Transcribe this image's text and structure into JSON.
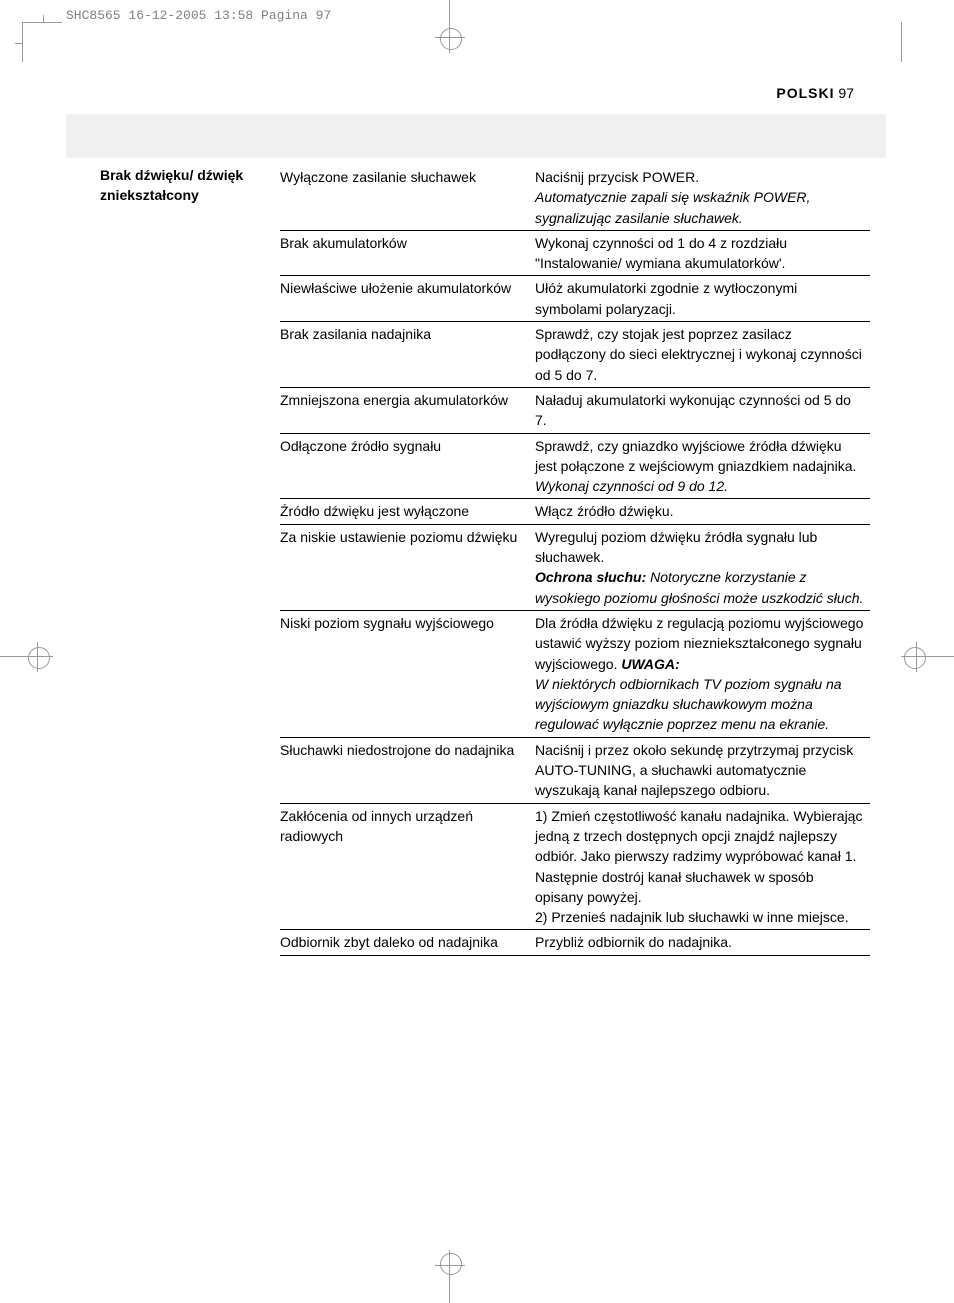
{
  "print_header": "SHC8565  16-12-2005  13:58  Pagina 97",
  "page_header": {
    "lang": "POLSKI",
    "num": "97"
  },
  "section_label": "Brak dźwięku/ dźwięk zniekształcony",
  "rows": [
    {
      "cause": "Wyłączone zasilanie słuchawek",
      "fix": [
        {
          "t": "Naciśnij przycisk POWER."
        },
        {
          "t": "Automatycznie zapali się wskaźnik POWER, sygnalizując zasilanie słuchawek.",
          "cls": "italic"
        }
      ]
    },
    {
      "cause": "Brak akumulatorków",
      "fix": [
        {
          "t": "Wykonaj czynności od 1 do 4 z rozdziału \"Instalowanie/ wymiana akumulatorków'."
        }
      ]
    },
    {
      "cause": "Niewłaściwe ułożenie akumulatorków",
      "fix": [
        {
          "t": "Ułóż akumulatorki zgodnie z wytłoczonymi symbolami polaryzacji."
        }
      ]
    },
    {
      "cause": "Brak zasilania nadajnika",
      "fix": [
        {
          "t": "Sprawdź, czy stojak jest poprzez zasilacz podłączony do sieci elektrycznej i wykonaj czynności od 5 do 7."
        }
      ]
    },
    {
      "cause": "Zmniejszona energia akumulatorków",
      "fix": [
        {
          "t": "Naładuj akumulatorki wykonując czynności od 5 do 7."
        }
      ]
    },
    {
      "cause": "Odłączone źródło sygnału",
      "fix": [
        {
          "t": "Sprawdź, czy gniazdko wyjściowe źródła dźwięku jest połączone z wejściowym gniazdkiem nadajnika."
        },
        {
          "t": "Wykonaj czynności od 9 do 12.",
          "cls": "italic"
        }
      ]
    },
    {
      "cause": "Źródło dźwięku jest wyłączone",
      "fix": [
        {
          "t": "Włącz źródło dźwięku."
        }
      ]
    },
    {
      "cause": "Za niskie ustawienie poziomu dźwięku",
      "fix": [
        {
          "t": "Wyreguluj poziom dźwięku źródła sygnału lub słuchawek."
        },
        {
          "t": "Ochrona słuchu:",
          "cls": "bolditalic",
          "inline_next": true
        },
        {
          "t": " Notoryczne korzystanie z wysokiego poziomu głośności może uszkodzić słuch.",
          "cls": "italic"
        }
      ]
    },
    {
      "cause": "Niski poziom sygnału wyjściowego",
      "fix": [
        {
          "t": "Dla źródła dźwięku z regulacją poziomu wyjściowego ustawić wyższy poziom niezniekształconego sygnału wyjściowego. ",
          "inline_next": true
        },
        {
          "t": "UWAGA:",
          "cls": "bolditalic"
        },
        {
          "t": "W niektórych odbiornikach TV poziom sygnału na wyjściowym gniazdku słuchawkowym można regulować wyłącznie poprzez menu na ekranie.",
          "cls": "italic"
        }
      ]
    },
    {
      "cause": "Słuchawki niedostrojone do nadajnika",
      "fix": [
        {
          "t": "Naciśnij i przez około sekundę przytrzymaj przycisk AUTO-TUNING, a słuchawki automatycznie wyszukają kanał najlepszego odbioru."
        }
      ]
    },
    {
      "cause": "Zakłócenia od innych urządzeń radiowych",
      "fix": [
        {
          "t": "1) Zmień częstotliwość kanału nadajnika. Wybierając jedną z trzech dostępnych opcji znajdź najlepszy odbiór. Jako pierwszy radzimy wypróbować kanał 1. Następnie dostrój kanał słuchawek w sposób opisany powyżej."
        },
        {
          "t": "2) Przenieś nadajnik lub słuchawki w inne miejsce."
        }
      ]
    },
    {
      "cause": "Odbiornik zbyt daleko od nadajnika",
      "fix": [
        {
          "t": "Przybliż odbiornik do nadajnika."
        }
      ]
    }
  ]
}
